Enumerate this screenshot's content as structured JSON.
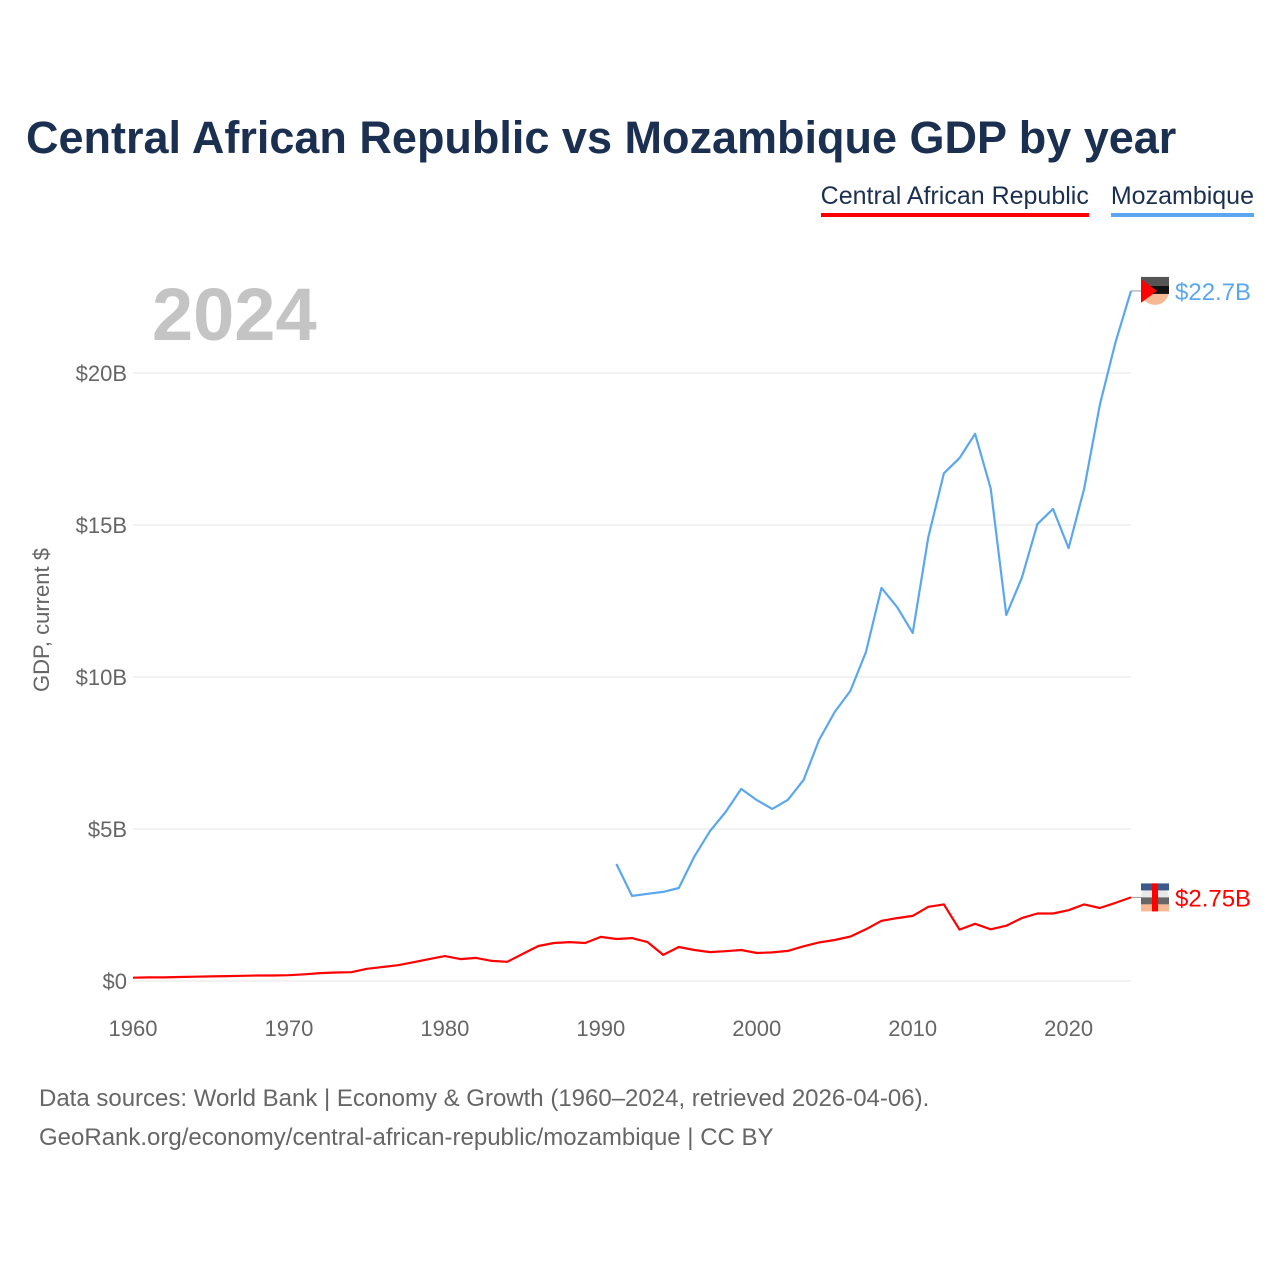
{
  "chart_data": {
    "type": "line",
    "title": "Central African Republic vs Mozambique GDP by year",
    "ylabel": "GDP, current $",
    "xlabel": "",
    "current_year": "2024",
    "xlim": [
      1960,
      2024
    ],
    "ylim": [
      0,
      22.7
    ],
    "x_ticks": [
      1960,
      1970,
      1980,
      1990,
      2000,
      2010,
      2020
    ],
    "y_ticks": [
      0,
      5,
      10,
      15,
      20
    ],
    "y_tick_labels": [
      "$0",
      "$5B",
      "$10B",
      "$15B",
      "$20B"
    ],
    "grid": true,
    "legend_placement": "top-right",
    "series": [
      {
        "name": "Central African Republic",
        "color": "#ff0000",
        "end_label": "$2.75B",
        "start_year": 1960,
        "values": [
          0.11,
          0.12,
          0.12,
          0.13,
          0.14,
          0.15,
          0.16,
          0.17,
          0.18,
          0.18,
          0.19,
          0.22,
          0.26,
          0.28,
          0.29,
          0.4,
          0.46,
          0.52,
          0.62,
          0.72,
          0.82,
          0.72,
          0.76,
          0.66,
          0.63,
          0.89,
          1.15,
          1.25,
          1.28,
          1.25,
          1.45,
          1.38,
          1.41,
          1.28,
          0.86,
          1.12,
          1.02,
          0.95,
          0.98,
          1.02,
          0.92,
          0.94,
          0.99,
          1.14,
          1.27,
          1.35,
          1.46,
          1.7,
          1.98,
          2.07,
          2.14,
          2.44,
          2.52,
          1.69,
          1.88,
          1.7,
          1.82,
          2.07,
          2.22,
          2.22,
          2.33,
          2.52,
          2.4,
          2.57,
          2.75
        ]
      },
      {
        "name": "Mozambique",
        "color": "#5ba7ef",
        "end_label": "$22.7B",
        "start_year": 1991,
        "values": [
          3.85,
          2.8,
          2.87,
          2.93,
          3.06,
          4.1,
          4.93,
          5.56,
          6.32,
          5.95,
          5.66,
          5.96,
          6.61,
          7.93,
          8.85,
          9.54,
          10.82,
          12.93,
          12.3,
          11.45,
          14.6,
          16.7,
          17.2,
          18.0,
          16.2,
          12.04,
          13.26,
          15.03,
          15.53,
          14.24,
          16.2,
          18.95,
          21.0,
          22.7
        ]
      }
    ]
  },
  "footer": {
    "line1": "Data sources: World Bank | Economy & Growth (1960–2024, retrieved 2026-04-06).",
    "line2": "GeoRank.org/economy/central-african-republic/mozambique | CC BY"
  }
}
